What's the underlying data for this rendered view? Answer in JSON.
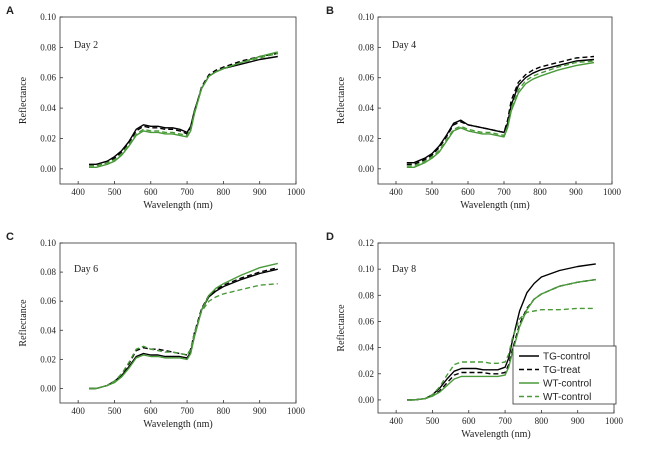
{
  "legend": [
    {
      "label": "TG-control",
      "color": "#000000",
      "dash": "solid"
    },
    {
      "label": "TG-treat",
      "color": "#000000",
      "dash": "dashed"
    },
    {
      "label": "WT-control",
      "color": "#4a9a3a",
      "dash": "solid"
    },
    {
      "label": "WT-control",
      "color": "#4a9a3a",
      "dash": "dashed"
    }
  ],
  "chart_data": [
    {
      "type": "line",
      "panel": "A",
      "annotation": "Day 2",
      "xlabel": "Wavelength (nm)",
      "ylabel": "Reflectance",
      "xlim": [
        350,
        1000
      ],
      "ylim": [
        -0.01,
        0.1
      ],
      "xticks": [
        400,
        500,
        600,
        700,
        800,
        900,
        1000
      ],
      "yticks": [
        "0.00",
        "0.02",
        "0.04",
        "0.06",
        "0.08",
        "0.10"
      ],
      "x": [
        430,
        450,
        480,
        500,
        520,
        540,
        560,
        580,
        600,
        620,
        640,
        660,
        680,
        700,
        710,
        720,
        740,
        760,
        780,
        800,
        850,
        900,
        950
      ],
      "series": [
        {
          "name": "TG-control",
          "values": [
            0.003,
            0.003,
            0.005,
            0.008,
            0.012,
            0.018,
            0.026,
            0.029,
            0.028,
            0.028,
            0.027,
            0.027,
            0.026,
            0.024,
            0.028,
            0.038,
            0.053,
            0.061,
            0.064,
            0.066,
            0.069,
            0.072,
            0.074
          ]
        },
        {
          "name": "TG-treat",
          "values": [
            0.002,
            0.002,
            0.004,
            0.007,
            0.011,
            0.017,
            0.025,
            0.028,
            0.027,
            0.027,
            0.026,
            0.026,
            0.025,
            0.023,
            0.027,
            0.037,
            0.054,
            0.062,
            0.065,
            0.067,
            0.071,
            0.074,
            0.076
          ]
        },
        {
          "name": "WT-control",
          "values": [
            0.001,
            0.001,
            0.003,
            0.005,
            0.009,
            0.015,
            0.022,
            0.025,
            0.024,
            0.024,
            0.023,
            0.023,
            0.022,
            0.021,
            0.025,
            0.036,
            0.053,
            0.061,
            0.064,
            0.066,
            0.07,
            0.074,
            0.077
          ]
        },
        {
          "name": "WT-control",
          "values": [
            0.002,
            0.002,
            0.004,
            0.006,
            0.01,
            0.016,
            0.023,
            0.026,
            0.025,
            0.025,
            0.024,
            0.024,
            0.023,
            0.022,
            0.026,
            0.037,
            0.053,
            0.061,
            0.064,
            0.066,
            0.07,
            0.073,
            0.076
          ]
        }
      ]
    },
    {
      "type": "line",
      "panel": "B",
      "annotation": "Day 4",
      "xlabel": "Wavelength (nm)",
      "ylabel": "Reflectance",
      "xlim": [
        350,
        1000
      ],
      "ylim": [
        -0.01,
        0.1
      ],
      "xticks": [
        400,
        500,
        600,
        700,
        800,
        900,
        1000
      ],
      "yticks": [
        "0.00",
        "0.02",
        "0.04",
        "0.06",
        "0.08",
        "0.10"
      ],
      "x": [
        430,
        450,
        480,
        500,
        520,
        540,
        560,
        580,
        600,
        620,
        640,
        660,
        680,
        700,
        710,
        720,
        740,
        760,
        780,
        800,
        850,
        900,
        950
      ],
      "series": [
        {
          "name": "TG-control",
          "values": [
            0.004,
            0.004,
            0.007,
            0.01,
            0.015,
            0.022,
            0.03,
            0.032,
            0.029,
            0.028,
            0.027,
            0.026,
            0.025,
            0.024,
            0.03,
            0.042,
            0.055,
            0.06,
            0.063,
            0.065,
            0.068,
            0.071,
            0.072
          ]
        },
        {
          "name": "TG-treat",
          "values": [
            0.003,
            0.003,
            0.006,
            0.009,
            0.014,
            0.021,
            0.029,
            0.031,
            0.029,
            0.028,
            0.027,
            0.026,
            0.025,
            0.024,
            0.032,
            0.045,
            0.057,
            0.062,
            0.065,
            0.067,
            0.07,
            0.073,
            0.074
          ]
        },
        {
          "name": "WT-control",
          "values": [
            0.001,
            0.001,
            0.004,
            0.007,
            0.011,
            0.018,
            0.025,
            0.027,
            0.025,
            0.024,
            0.023,
            0.023,
            0.022,
            0.021,
            0.027,
            0.038,
            0.05,
            0.056,
            0.059,
            0.061,
            0.065,
            0.068,
            0.07
          ]
        },
        {
          "name": "WT-control",
          "values": [
            0.002,
            0.002,
            0.005,
            0.008,
            0.012,
            0.019,
            0.026,
            0.028,
            0.026,
            0.025,
            0.024,
            0.024,
            0.023,
            0.022,
            0.028,
            0.04,
            0.052,
            0.058,
            0.061,
            0.063,
            0.067,
            0.07,
            0.071
          ]
        }
      ]
    },
    {
      "type": "line",
      "panel": "C",
      "annotation": "Day 6",
      "xlabel": "Wavelength (nm)",
      "ylabel": "Reflectance",
      "xlim": [
        350,
        1000
      ],
      "ylim": [
        -0.01,
        0.1
      ],
      "xticks": [
        400,
        500,
        600,
        700,
        800,
        900,
        1000
      ],
      "yticks": [
        "0.00",
        "0.02",
        "0.04",
        "0.06",
        "0.08",
        "0.10"
      ],
      "x": [
        430,
        450,
        480,
        500,
        520,
        540,
        560,
        580,
        600,
        620,
        640,
        660,
        680,
        700,
        710,
        720,
        740,
        760,
        780,
        800,
        850,
        900,
        950
      ],
      "series": [
        {
          "name": "TG-control",
          "values": [
            0.0,
            0.0,
            0.002,
            0.005,
            0.009,
            0.015,
            0.022,
            0.024,
            0.023,
            0.023,
            0.022,
            0.022,
            0.022,
            0.021,
            0.025,
            0.036,
            0.054,
            0.063,
            0.067,
            0.07,
            0.075,
            0.079,
            0.082
          ]
        },
        {
          "name": "TG-treat",
          "values": [
            0.0,
            0.0,
            0.002,
            0.005,
            0.01,
            0.017,
            0.026,
            0.028,
            0.027,
            0.027,
            0.026,
            0.025,
            0.024,
            0.023,
            0.027,
            0.038,
            0.055,
            0.064,
            0.068,
            0.071,
            0.076,
            0.08,
            0.083
          ]
        },
        {
          "name": "WT-control",
          "values": [
            0.0,
            0.0,
            0.002,
            0.004,
            0.008,
            0.014,
            0.021,
            0.023,
            0.022,
            0.022,
            0.021,
            0.021,
            0.021,
            0.02,
            0.024,
            0.035,
            0.054,
            0.064,
            0.069,
            0.072,
            0.078,
            0.083,
            0.086
          ]
        },
        {
          "name": "WT-control",
          "values": [
            0.0,
            0.0,
            0.002,
            0.005,
            0.01,
            0.018,
            0.027,
            0.029,
            0.027,
            0.026,
            0.025,
            0.025,
            0.024,
            0.023,
            0.027,
            0.038,
            0.053,
            0.06,
            0.063,
            0.065,
            0.068,
            0.071,
            0.072
          ]
        }
      ]
    },
    {
      "type": "line",
      "panel": "D",
      "annotation": "Day 8",
      "xlabel": "Wavelength (nm)",
      "ylabel": "Reflectance",
      "xlim": [
        350,
        1000
      ],
      "ylim": [
        -0.01,
        0.12
      ],
      "xticks": [
        400,
        500,
        600,
        700,
        800,
        900,
        1000
      ],
      "yticks": [
        "0.00",
        "0.02",
        "0.04",
        "0.06",
        "0.08",
        "0.10",
        "0.12"
      ],
      "x": [
        430,
        450,
        480,
        500,
        520,
        540,
        560,
        580,
        600,
        620,
        640,
        660,
        680,
        700,
        710,
        720,
        740,
        760,
        780,
        800,
        850,
        900,
        950
      ],
      "series": [
        {
          "name": "TG-control",
          "values": [
            0.0,
            0.0,
            0.001,
            0.004,
            0.009,
            0.016,
            0.022,
            0.024,
            0.024,
            0.024,
            0.023,
            0.023,
            0.023,
            0.025,
            0.032,
            0.045,
            0.068,
            0.082,
            0.089,
            0.094,
            0.099,
            0.102,
            0.104
          ]
        },
        {
          "name": "TG-treat",
          "values": [
            0.0,
            0.0,
            0.001,
            0.003,
            0.007,
            0.013,
            0.019,
            0.021,
            0.021,
            0.021,
            0.021,
            0.02,
            0.02,
            0.021,
            0.027,
            0.038,
            0.058,
            0.07,
            0.077,
            0.081,
            0.087,
            0.09,
            0.092
          ]
        },
        {
          "name": "WT-control",
          "values": [
            0.0,
            0.0,
            0.001,
            0.003,
            0.006,
            0.011,
            0.016,
            0.018,
            0.018,
            0.018,
            0.018,
            0.018,
            0.018,
            0.019,
            0.025,
            0.036,
            0.056,
            0.069,
            0.077,
            0.081,
            0.087,
            0.09,
            0.092
          ]
        },
        {
          "name": "WT-control",
          "values": [
            0.0,
            0.0,
            0.001,
            0.004,
            0.01,
            0.019,
            0.027,
            0.029,
            0.029,
            0.029,
            0.029,
            0.028,
            0.028,
            0.029,
            0.035,
            0.047,
            0.062,
            0.067,
            0.068,
            0.069,
            0.069,
            0.07,
            0.07
          ]
        }
      ]
    }
  ]
}
